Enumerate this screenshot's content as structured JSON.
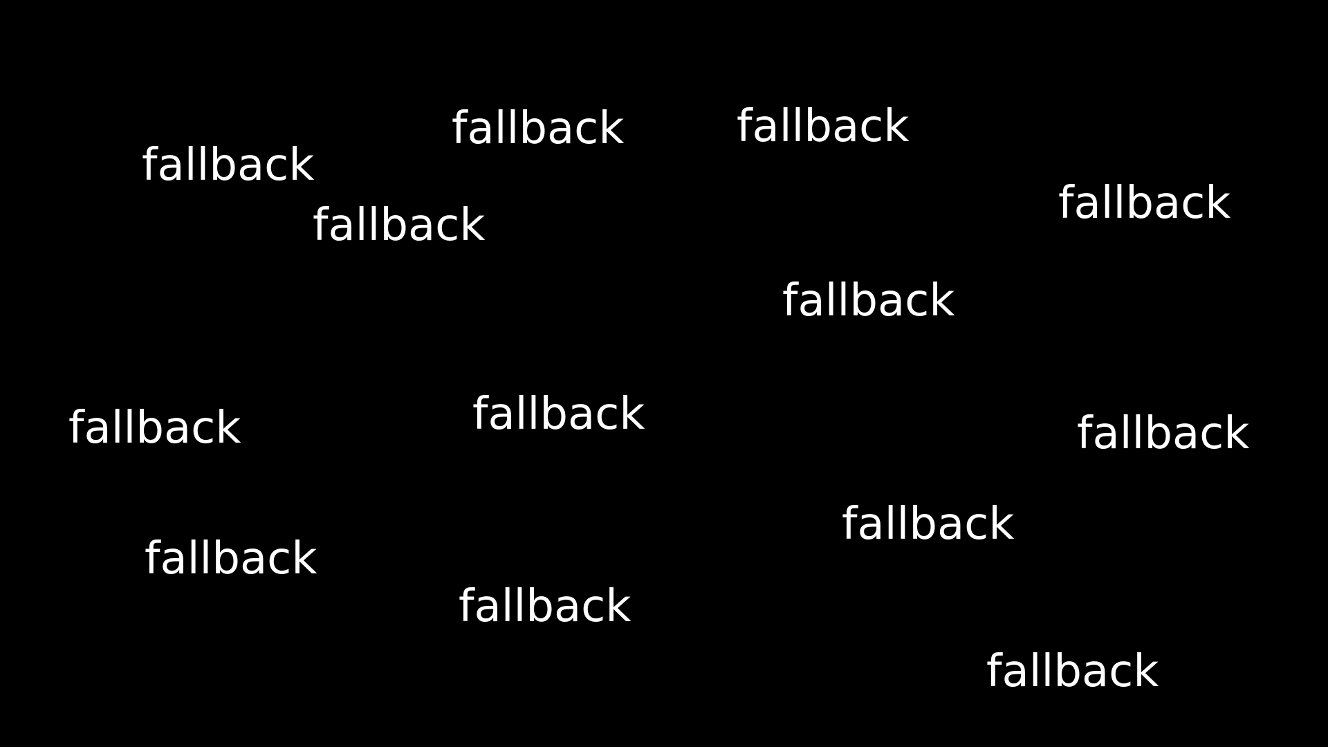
{
  "screen": {
    "background_color": "#000000",
    "text_color": "#ffffff"
  },
  "labels": [
    "fallback",
    "fallback",
    "fallback",
    "fallback",
    "fallback",
    "fallback",
    "fallback",
    "fallback",
    "fallback",
    "fallback",
    "fallback",
    "fallback",
    "fallback"
  ]
}
